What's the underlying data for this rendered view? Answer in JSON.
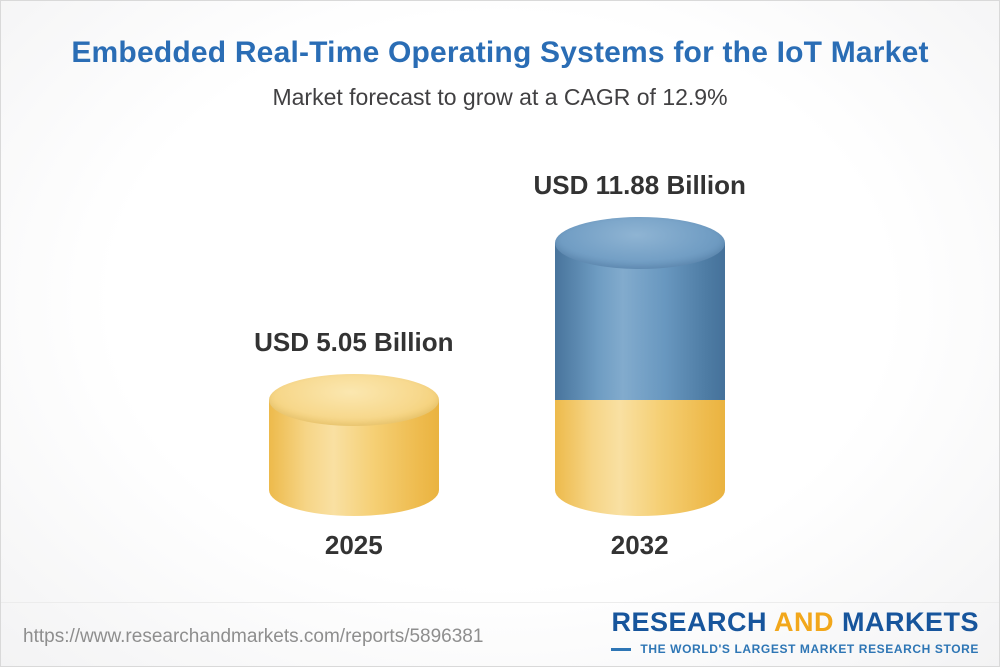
{
  "header": {
    "title": "Embedded Real-Time Operating Systems for the IoT Market",
    "subtitle": "Market forecast to grow at a CAGR of 12.9%"
  },
  "chart_data": {
    "type": "bar",
    "bar_style": "3d-cylinder",
    "title": "Embedded Real-Time Operating Systems for the IoT Market",
    "subtitle": "Market forecast to grow at a CAGR of 12.9%",
    "cagr_percent": 12.9,
    "unit": "USD Billion",
    "categories": [
      "2025",
      "2032"
    ],
    "values": [
      5.05,
      11.88
    ],
    "ylim": [
      0,
      12.5
    ],
    "grid": false,
    "legend": false,
    "colors": {
      "base": "#F3CB68",
      "growth": "#5E8FB8"
    },
    "bars": [
      {
        "category": "2025",
        "label": "USD 5.05 Billion",
        "total": 5.05,
        "segments": [
          {
            "name": "base",
            "value": 5.05
          }
        ]
      },
      {
        "category": "2032",
        "label": "USD 11.88 Billion",
        "total": 11.88,
        "segments": [
          {
            "name": "base",
            "value": 5.05
          },
          {
            "name": "growth",
            "value": 6.83
          }
        ]
      }
    ]
  },
  "footer": {
    "url": "https://www.researchandmarkets.com/reports/5896381",
    "logo": {
      "word1": "RESEARCH",
      "word2": "AND",
      "word3": "MARKETS",
      "tagline": "THE WORLD'S LARGEST MARKET RESEARCH STORE"
    }
  }
}
